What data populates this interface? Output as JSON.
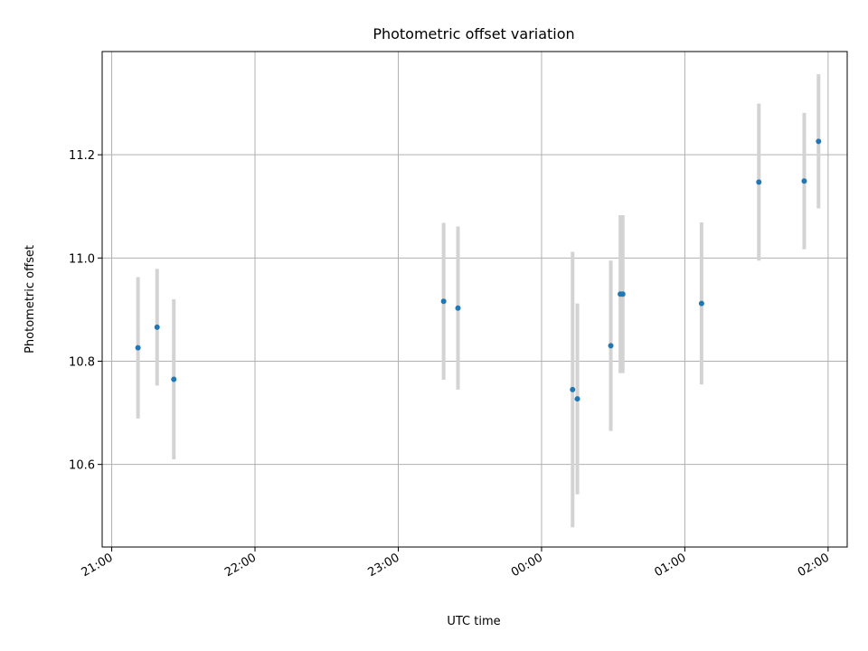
{
  "chart_data": {
    "type": "scatter",
    "title": "Photometric offset variation",
    "xlabel": "UTC time",
    "ylabel": "Photometric offset",
    "xlim": [
      "20:56",
      "02:08"
    ],
    "ylim": [
      10.44,
      11.4
    ],
    "grid": true,
    "x_ticks": [
      "21:00",
      "22:00",
      "23:00",
      "00:00",
      "01:00",
      "02:00"
    ],
    "y_ticks": [
      10.6,
      10.8,
      11.0,
      11.2
    ],
    "point_color": "#1f77b4",
    "errorbar_color": "#d3d3d3",
    "points": [
      {
        "time": "21:11",
        "y": 10.826,
        "err": 0.137
      },
      {
        "time": "21:19",
        "y": 10.866,
        "err": 0.113
      },
      {
        "time": "21:26",
        "y": 10.765,
        "err": 0.155
      },
      {
        "time": "23:19",
        "y": 10.916,
        "err": 0.152
      },
      {
        "time": "23:25",
        "y": 10.903,
        "err": 0.158
      },
      {
        "time": "00:13",
        "y": 10.745,
        "err": 0.267
      },
      {
        "time": "00:15",
        "y": 10.727,
        "err": 0.185
      },
      {
        "time": "00:29",
        "y": 10.83,
        "err": 0.165
      },
      {
        "time": "00:33",
        "y": 10.93,
        "err": 0.153
      },
      {
        "time": "00:34",
        "y": 10.93,
        "err": 0.153
      },
      {
        "time": "01:07",
        "y": 10.912,
        "err": 0.157
      },
      {
        "time": "01:31",
        "y": 11.147,
        "err": 0.152
      },
      {
        "time": "01:50",
        "y": 11.149,
        "err": 0.132
      },
      {
        "time": "01:56",
        "y": 11.226,
        "err": 0.13
      }
    ]
  }
}
